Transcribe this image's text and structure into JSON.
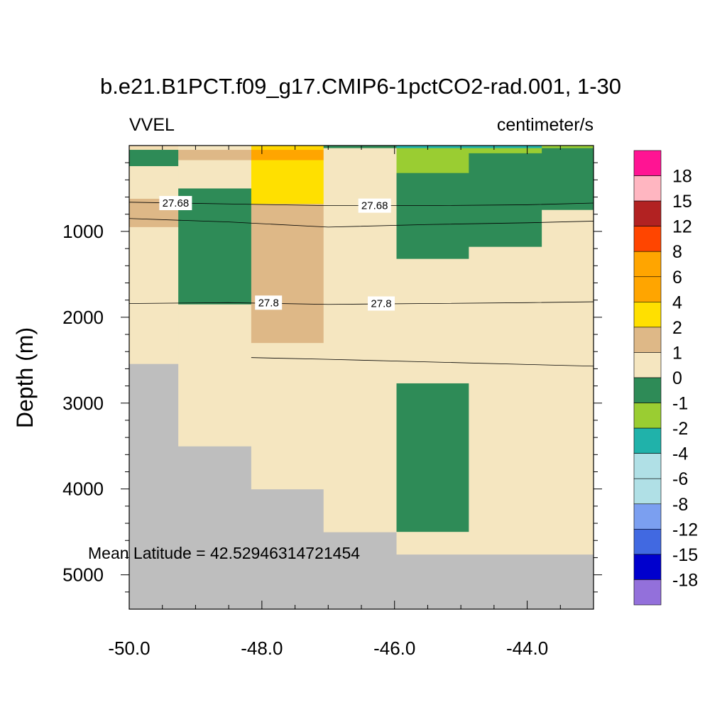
{
  "chart_data": {
    "type": "heatmap",
    "title": "b.e21.B1PCT.f09_g17.CMIP6-1pctCO2-rad.001, 1-30",
    "left_label": "VVEL",
    "right_label": "centimeter/s",
    "ylabel": "Depth (m)",
    "xlabel": "",
    "annotation": "Mean Latitude = 42.52946314721454",
    "xlim": [
      -50.0,
      -43.0
    ],
    "ylim": [
      0,
      5400
    ],
    "y_reversed": true,
    "x_ticks": [
      -50.0,
      -48.0,
      -46.0,
      -44.0
    ],
    "x_tick_labels": [
      "-50.0",
      "-48.0",
      "-46.0",
      "-44.0"
    ],
    "y_ticks": [
      1000,
      2000,
      3000,
      4000,
      5000
    ],
    "y_tick_labels": [
      "1000",
      "2000",
      "3000",
      "4000",
      "5000"
    ],
    "x_edges": [
      -50.0,
      -49.26,
      -48.16,
      -47.07,
      -45.97,
      -44.88,
      -43.78,
      -43.0
    ],
    "bottom_depth": 5400,
    "missing_color": "#bebebe",
    "columns": [
      {
        "bottom": 2540,
        "cells": [
          {
            "top": 0,
            "bottom": 50,
            "color": "#f5deb3"
          },
          {
            "top": 50,
            "bottom": 240,
            "color": "#2e8b57"
          },
          {
            "top": 240,
            "bottom": 620,
            "color": "#f5e6c0"
          },
          {
            "top": 620,
            "bottom": 950,
            "color": "#deb887"
          },
          {
            "top": 950,
            "bottom": 2540,
            "color": "#f5e6c0"
          }
        ]
      },
      {
        "bottom": 3500,
        "cells": [
          {
            "top": 0,
            "bottom": 50,
            "color": "#f5e6c0"
          },
          {
            "top": 50,
            "bottom": 170,
            "color": "#deb887"
          },
          {
            "top": 170,
            "bottom": 500,
            "color": "#f5e6c0"
          },
          {
            "top": 500,
            "bottom": 1850,
            "color": "#2e8b57"
          },
          {
            "top": 1850,
            "bottom": 3500,
            "color": "#f5e6c0"
          }
        ]
      },
      {
        "bottom": 4000,
        "cells": [
          {
            "top": 0,
            "bottom": 50,
            "color": "#ffd700"
          },
          {
            "top": 50,
            "bottom": 170,
            "color": "#ffa500"
          },
          {
            "top": 170,
            "bottom": 680,
            "color": "#ffe000"
          },
          {
            "top": 680,
            "bottom": 2300,
            "color": "#deb887"
          },
          {
            "top": 2300,
            "bottom": 4000,
            "color": "#f5e6c0"
          }
        ]
      },
      {
        "bottom": 4500,
        "cells": [
          {
            "top": 0,
            "bottom": 30,
            "color": "#2e8b57"
          },
          {
            "top": 30,
            "bottom": 4500,
            "color": "#f5e6c0"
          }
        ]
      },
      {
        "bottom": 4760,
        "cells": [
          {
            "top": 0,
            "bottom": 30,
            "color": "#20b2aa"
          },
          {
            "top": 30,
            "bottom": 320,
            "color": "#9acd32"
          },
          {
            "top": 320,
            "bottom": 1320,
            "color": "#2e8b57"
          },
          {
            "top": 1320,
            "bottom": 2770,
            "color": "#f5e6c0"
          },
          {
            "top": 2770,
            "bottom": 4500,
            "color": "#2e8b57"
          },
          {
            "top": 4500,
            "bottom": 4760,
            "color": "#f5e6c0"
          }
        ]
      },
      {
        "bottom": 4760,
        "cells": [
          {
            "top": 0,
            "bottom": 30,
            "color": "#20b2aa"
          },
          {
            "top": 30,
            "bottom": 90,
            "color": "#9acd32"
          },
          {
            "top": 90,
            "bottom": 1180,
            "color": "#2e8b57"
          },
          {
            "top": 1180,
            "bottom": 4760,
            "color": "#f5e6c0"
          }
        ]
      },
      {
        "bottom": 4760,
        "cells": [
          {
            "top": 0,
            "bottom": 30,
            "color": "#9acd32"
          },
          {
            "top": 30,
            "bottom": 750,
            "color": "#2e8b57"
          },
          {
            "top": 750,
            "bottom": 4760,
            "color": "#f5e6c0"
          }
        ]
      }
    ],
    "contours": [
      {
        "level": "27.68",
        "x": [
          -50.0,
          -48.5,
          -47.0,
          -45.5,
          -44.0,
          -43.0
        ],
        "y": [
          660,
          680,
          700,
          700,
          690,
          670
        ],
        "labels": [
          {
            "x": -49.3,
            "y": 670,
            "text": "27.68"
          },
          {
            "x": -46.3,
            "y": 700,
            "text": "27.68"
          }
        ]
      },
      {
        "level": "",
        "x": [
          -50.0,
          -48.5,
          -47.0,
          -45.5,
          -44.0,
          -43.0
        ],
        "y": [
          850,
          890,
          950,
          920,
          900,
          880
        ],
        "labels": []
      },
      {
        "level": "27.8",
        "x": [
          -50.0,
          -48.5,
          -47.0,
          -45.5,
          -44.0,
          -43.0
        ],
        "y": [
          1840,
          1830,
          1850,
          1840,
          1830,
          1820
        ],
        "labels": [
          {
            "x": -47.9,
            "y": 1830,
            "text": "27.8"
          },
          {
            "x": -46.2,
            "y": 1840,
            "text": "27.8"
          }
        ]
      },
      {
        "level": "",
        "x": [
          -48.16,
          -47.0,
          -45.5,
          -44.0,
          -43.0
        ],
        "y": [
          2470,
          2490,
          2520,
          2550,
          2570
        ],
        "labels": []
      }
    ],
    "colorbar": {
      "colors": [
        "#ff1493",
        "#ffb6c1",
        "#b22222",
        "#ff4500",
        "#ffa500",
        "#ffa500",
        "#ffe000",
        "#deb887",
        "#f5e6c0",
        "#2e8b57",
        "#9acd32",
        "#20b2aa",
        "#b0e0e6",
        "#b0e0e6",
        "#7b9ff0",
        "#4169e1",
        "#0000cd",
        "#9370db"
      ],
      "labels": [
        "18",
        "15",
        "12",
        "8",
        "6",
        "4",
        "2",
        "1",
        "0",
        "-1",
        "-2",
        "-4",
        "-6",
        "-8",
        "-12",
        "-15",
        "-18"
      ]
    }
  }
}
